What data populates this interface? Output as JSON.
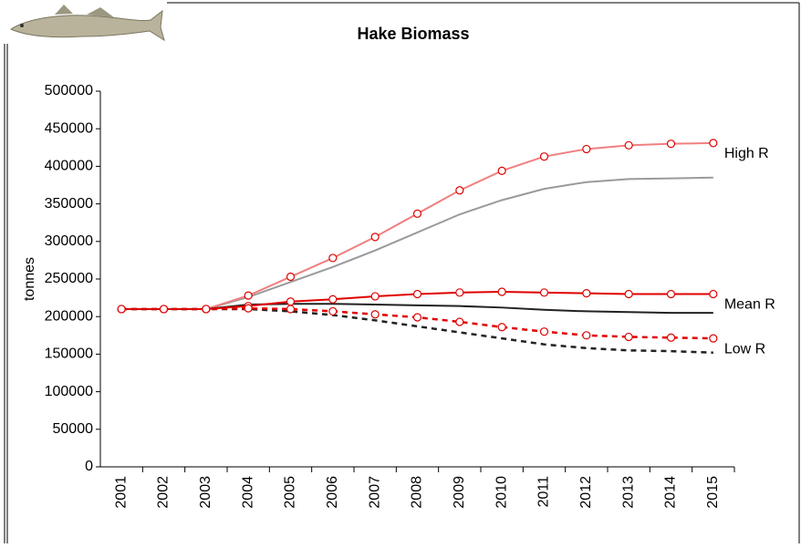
{
  "chart_data": {
    "type": "line",
    "title": "Hake Biomass",
    "y_label": "tonnes",
    "categories": [
      "2001",
      "2002",
      "2003",
      "2004",
      "2005",
      "2006",
      "2007",
      "2008",
      "2009",
      "2010",
      "2011",
      "2012",
      "2013",
      "2014",
      "2015"
    ],
    "ylim": [
      0,
      500000
    ],
    "yticks": [
      0,
      50000,
      100000,
      150000,
      200000,
      250000,
      300000,
      350000,
      400000,
      450000,
      500000
    ],
    "grid": false,
    "series": [
      {
        "color": "#9a9a9a",
        "dashed": false,
        "markers": false,
        "values": [
          210000,
          210000,
          210000,
          226000,
          246000,
          266000,
          288000,
          312000,
          336000,
          355000,
          370000,
          379000,
          383000,
          384000,
          385000
        ]
      },
      {
        "name": "High R",
        "color": "#f08080",
        "dashed": false,
        "markers": true,
        "values": [
          210000,
          210000,
          210000,
          228000,
          253000,
          278000,
          306000,
          337000,
          368000,
          394000,
          413000,
          423000,
          428000,
          430000,
          431000
        ]
      },
      {
        "color": "#222222",
        "dashed": false,
        "markers": false,
        "values": [
          210000,
          210000,
          210000,
          216000,
          217000,
          217000,
          216000,
          215000,
          214000,
          212000,
          209000,
          207000,
          206000,
          205000,
          205000
        ]
      },
      {
        "name": "Mean R",
        "color": "#e00000",
        "dashed": false,
        "markers": true,
        "values": [
          210000,
          210000,
          210000,
          214000,
          220000,
          223000,
          227000,
          230000,
          232000,
          233000,
          232000,
          231000,
          230000,
          230000,
          230000
        ]
      },
      {
        "color": "#222222",
        "dashed": true,
        "markers": false,
        "values": [
          210000,
          210000,
          210000,
          210000,
          207000,
          202000,
          195000,
          187000,
          179000,
          171000,
          163000,
          158000,
          155000,
          154000,
          152000
        ]
      },
      {
        "name": "Low R",
        "color": "#e00000",
        "dashed": true,
        "markers": true,
        "values": [
          210000,
          210000,
          210000,
          211000,
          210000,
          207000,
          203000,
          199000,
          193000,
          186000,
          180000,
          175000,
          173000,
          172000,
          171000
        ]
      }
    ]
  }
}
